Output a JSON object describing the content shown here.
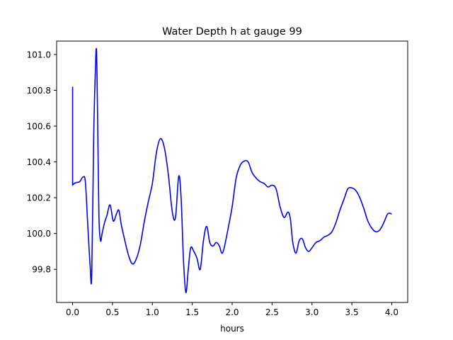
{
  "chart_data": {
    "type": "line",
    "title": "Water Depth h at gauge 99",
    "xlabel": "hours",
    "ylabel": "",
    "xlim": [
      -0.2,
      4.2
    ],
    "ylim": [
      99.615,
      101.075
    ],
    "xticks": [
      0.0,
      0.5,
      1.0,
      1.5,
      2.0,
      2.5,
      3.0,
      3.5,
      4.0
    ],
    "xtick_labels": [
      "0.0",
      "0.5",
      "1.0",
      "1.5",
      "2.0",
      "2.5",
      "3.0",
      "3.5",
      "4.0"
    ],
    "yticks": [
      99.8,
      100.0,
      100.2,
      100.4,
      100.6,
      100.8,
      101.0
    ],
    "ytick_labels": [
      "99.8",
      "100.0",
      "100.2",
      "100.4",
      "100.6",
      "100.8",
      "101.0"
    ],
    "grid": false,
    "series": [
      {
        "color": "#0000ff",
        "x": [
          0.0,
          0.0,
          0.02,
          0.05,
          0.09,
          0.13,
          0.16,
          0.19,
          0.22,
          0.24,
          0.265,
          0.285,
          0.3,
          0.315,
          0.33,
          0.35,
          0.37,
          0.4,
          0.43,
          0.47,
          0.51,
          0.55,
          0.58,
          0.61,
          0.65,
          0.7,
          0.75,
          0.8,
          0.85,
          0.9,
          0.95,
          1.0,
          1.05,
          1.1,
          1.15,
          1.2,
          1.25,
          1.29,
          1.33,
          1.36,
          1.39,
          1.42,
          1.45,
          1.48,
          1.52,
          1.56,
          1.6,
          1.64,
          1.68,
          1.72,
          1.76,
          1.8,
          1.84,
          1.87,
          1.9,
          1.95,
          2.0,
          2.05,
          2.1,
          2.15,
          2.2,
          2.25,
          2.3,
          2.35,
          2.4,
          2.45,
          2.5,
          2.55,
          2.6,
          2.65,
          2.7,
          2.73,
          2.76,
          2.8,
          2.84,
          2.88,
          2.92,
          2.96,
          3.0,
          3.05,
          3.1,
          3.15,
          3.2,
          3.25,
          3.3,
          3.35,
          3.4,
          3.45,
          3.5,
          3.55,
          3.6,
          3.65,
          3.7,
          3.75,
          3.8,
          3.85,
          3.9,
          3.95,
          4.0
        ],
        "y": [
          100.82,
          100.27,
          100.28,
          100.285,
          100.29,
          100.315,
          100.29,
          100.05,
          99.82,
          99.77,
          100.55,
          100.9,
          101.02,
          100.6,
          100.1,
          99.96,
          100.0,
          100.06,
          100.1,
          100.16,
          100.07,
          100.11,
          100.13,
          100.05,
          99.97,
          99.88,
          99.83,
          99.86,
          99.94,
          100.07,
          100.18,
          100.28,
          100.45,
          100.53,
          100.48,
          100.33,
          100.12,
          100.09,
          100.32,
          100.2,
          99.85,
          99.67,
          99.8,
          99.92,
          99.9,
          99.86,
          99.8,
          99.96,
          100.04,
          99.95,
          99.93,
          99.95,
          99.93,
          99.89,
          99.92,
          100.03,
          100.15,
          100.31,
          100.38,
          100.405,
          100.4,
          100.34,
          100.31,
          100.29,
          100.28,
          100.26,
          100.27,
          100.25,
          100.15,
          100.09,
          100.12,
          100.08,
          99.95,
          99.89,
          99.96,
          99.97,
          99.92,
          99.9,
          99.92,
          99.95,
          99.96,
          99.98,
          99.99,
          100.01,
          100.06,
          100.13,
          100.19,
          100.25,
          100.255,
          100.24,
          100.2,
          100.14,
          100.07,
          100.03,
          100.01,
          100.02,
          100.06,
          100.11,
          100.11
        ]
      }
    ]
  }
}
